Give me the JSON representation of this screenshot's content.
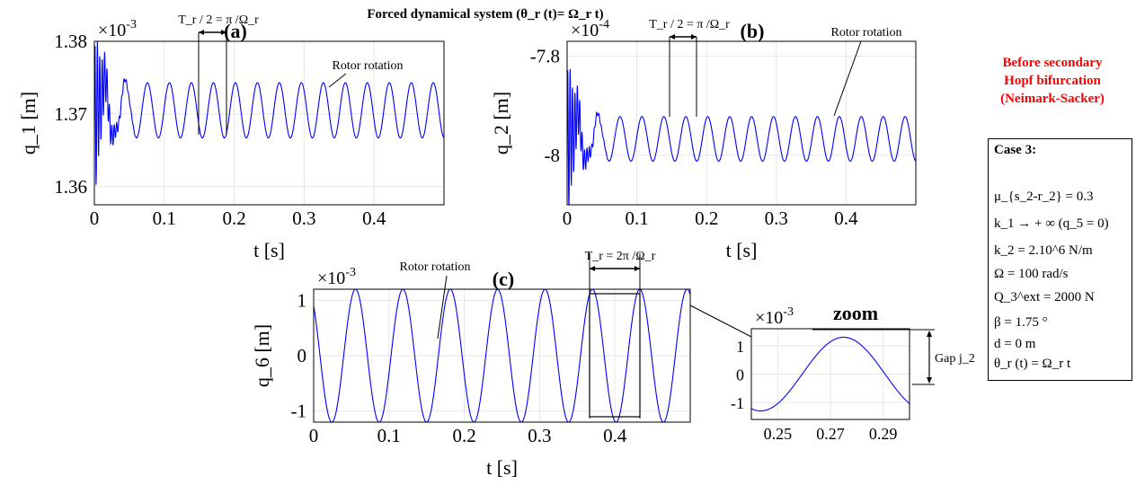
{
  "figure_title": "Forced dynamical system (θ_r (t)= Ω_r t)",
  "note_lines": [
    "Before secondary",
    "Hopf bifurcation",
    "(Neimark-Sacker)"
  ],
  "case_box": {
    "title": "Case 3:",
    "lines": [
      "μ_{s_2-r_2} = 0.3",
      "k_1 → + ∞ (q_5 = 0)",
      "k_2 = 2.10^6 N/m",
      "Ω = 100 rad/s",
      "Q_3^ext = 2000 N",
      "β = 1.75 °",
      "d = 0 m",
      "θ_r (t) = Ω_r t"
    ]
  },
  "colors": {
    "line": "#0000ff",
    "note": "#ff0000",
    "grid": "#e6e6e6"
  },
  "chart_data": [
    {
      "panel": "(a)",
      "type": "line",
      "xlabel": "t [s]",
      "ylabel": "q_1 [m]",
      "exponent": "×10^-3",
      "xlim": [
        0,
        0.5
      ],
      "ylim": [
        1.3575,
        1.38
      ],
      "x_ticks": [
        0,
        0.1,
        0.2,
        0.3,
        0.4
      ],
      "x_tick_labels": [
        "0",
        "0.1",
        "0.2",
        "0.3",
        "0.4"
      ],
      "y_ticks": [
        1.36,
        1.37,
        1.38
      ],
      "y_tick_labels": [
        "1.36",
        "1.37",
        "1.38"
      ],
      "signal": {
        "mean": 1.3705,
        "amplitude": 0.0038,
        "frequency_hz": 31.8,
        "transient_until_s": 0.06
      },
      "annotations": [
        "T_r / 2 = π /Ω_r",
        "Rotor rotation"
      ]
    },
    {
      "panel": "(b)",
      "type": "line",
      "xlabel": "t [s]",
      "ylabel": "q_2 [m]",
      "exponent": "×10^-4",
      "xlim": [
        0,
        0.5
      ],
      "ylim": [
        -8.1,
        -7.77
      ],
      "x_ticks": [
        0,
        0.1,
        0.2,
        0.3,
        0.4
      ],
      "x_tick_labels": [
        "0",
        "0.1",
        "0.2",
        "0.3",
        "0.4"
      ],
      "y_ticks": [
        -8,
        -7.8
      ],
      "y_tick_labels": [
        "-8",
        "-7.8"
      ],
      "signal": {
        "mean": -7.967,
        "amplitude": 0.045,
        "frequency_hz": 31.8,
        "transient_until_s": 0.06
      },
      "annotations": [
        "T_r / 2 = π /Ω_r",
        "Rotor rotation"
      ]
    },
    {
      "panel": "(c)",
      "type": "line",
      "xlabel": "t [s]",
      "ylabel": "q_6 [m]",
      "exponent": "×10^-3",
      "xlim": [
        0,
        0.5
      ],
      "ylim": [
        -1.2,
        1.2
      ],
      "x_ticks": [
        0,
        0.1,
        0.2,
        0.3,
        0.4
      ],
      "x_tick_labels": [
        "0",
        "0.1",
        "0.2",
        "0.3",
        "0.4"
      ],
      "y_ticks": [
        -1,
        0,
        1
      ],
      "y_tick_labels": [
        "-1",
        "0",
        "1"
      ],
      "signal": {
        "amplitude": 1.2,
        "frequency_hz": 15.9,
        "phase_rad": 2.3
      },
      "annotations": [
        "T_r = 2π /Ω_r",
        "Rotor rotation"
      ]
    },
    {
      "panel": "zoom",
      "type": "line",
      "title": "zoom",
      "xlabel": "",
      "ylabel": "",
      "exponent": "×10^-3",
      "xlim": [
        0.24,
        0.3
      ],
      "ylim": [
        -1.6,
        1.6
      ],
      "x_ticks": [
        0.25,
        0.27,
        0.29
      ],
      "x_tick_labels": [
        "0.25",
        "0.27",
        "0.29"
      ],
      "y_ticks": [
        -1,
        0,
        1
      ],
      "y_tick_labels": [
        "-1",
        "0",
        "1"
      ],
      "signal": {
        "amplitude": 1.3,
        "frequency_hz": 15.9,
        "peak_t_s": 0.275
      },
      "annotations": [
        "Gap j_2"
      ]
    }
  ]
}
